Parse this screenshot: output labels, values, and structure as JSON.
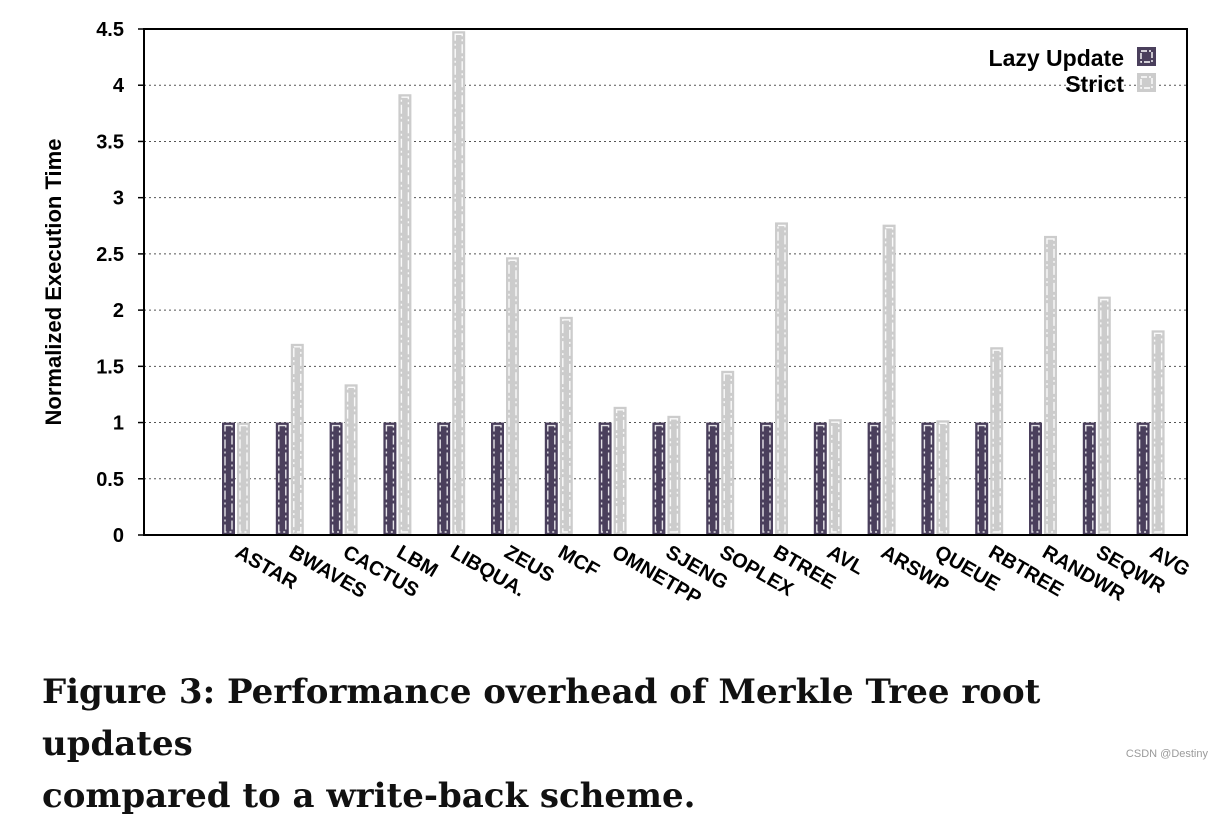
{
  "chart_data": {
    "type": "bar",
    "ylabel": "Normalized Execution Time",
    "xlabel": "",
    "ylim": [
      0,
      4.5
    ],
    "yticks": [
      "0",
      "0.5",
      "1",
      "1.5",
      "2",
      "2.5",
      "3",
      "3.5",
      "4",
      "4.5"
    ],
    "grid": "horizontal dotted",
    "legend_position": "top-right",
    "categories": [
      "ASTAR",
      "BWAVES",
      "CACTUS",
      "LBM",
      "LIBQUA.",
      "ZEUS",
      "MCF",
      "OMNETPP",
      "SJENG",
      "SOPLEX",
      "BTREE",
      "AVL",
      "ARSWP",
      "QUEUE",
      "RBTREE",
      "RANDWR",
      "SEQWR",
      "AVG"
    ],
    "series": [
      {
        "name": "Lazy Update",
        "color": "#4a3f5c",
        "values": [
          1,
          1,
          1,
          1,
          1,
          1,
          1,
          1,
          1,
          1,
          1,
          1,
          1,
          1,
          1,
          1,
          1,
          1
        ]
      },
      {
        "name": "Strict",
        "color": "#cccccc",
        "values": [
          1.0,
          1.7,
          1.34,
          3.92,
          4.48,
          2.47,
          1.94,
          1.14,
          1.06,
          1.46,
          2.78,
          1.03,
          2.76,
          1.02,
          1.67,
          2.66,
          2.12,
          1.82
        ]
      }
    ]
  },
  "caption": {
    "line1": "Figure 3: Performance overhead of Merkle Tree root updates",
    "line2": "compared to a write-back scheme."
  },
  "watermark": "CSDN @Destiny"
}
